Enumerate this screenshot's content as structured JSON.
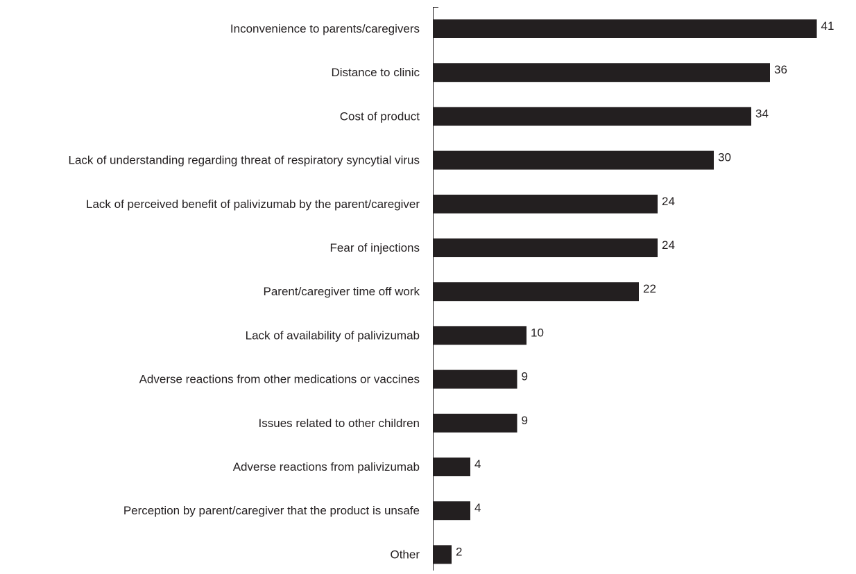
{
  "chart_data": {
    "type": "bar",
    "orientation": "horizontal",
    "categories": [
      "Inconvenience to parents/caregivers",
      "Distance to clinic",
      "Cost of product",
      "Lack of understanding regarding threat of respiratory syncytial virus",
      "Lack of perceived benefit of palivizumab by the parent/caregiver",
      "Fear of injections",
      "Parent/caregiver time off work",
      "Lack of availability of palivizumab",
      "Adverse reactions from other medications or vaccines",
      "Issues related to other children",
      "Adverse reactions from palivizumab",
      "Perception by parent/caregiver that the product is unsafe",
      "Other"
    ],
    "values": [
      41,
      36,
      34,
      30,
      24,
      24,
      22,
      10,
      9,
      9,
      4,
      4,
      2
    ],
    "data_labels": [
      "41",
      "36",
      "34",
      "30",
      "24",
      "24",
      "22",
      "10",
      "9",
      "9",
      "4",
      "4",
      "2"
    ],
    "xlim": [
      0,
      45
    ],
    "grid": false,
    "legend": "none",
    "bar_color": "#231f20",
    "axis_color": "#231f20",
    "text_color": "#231f20"
  }
}
